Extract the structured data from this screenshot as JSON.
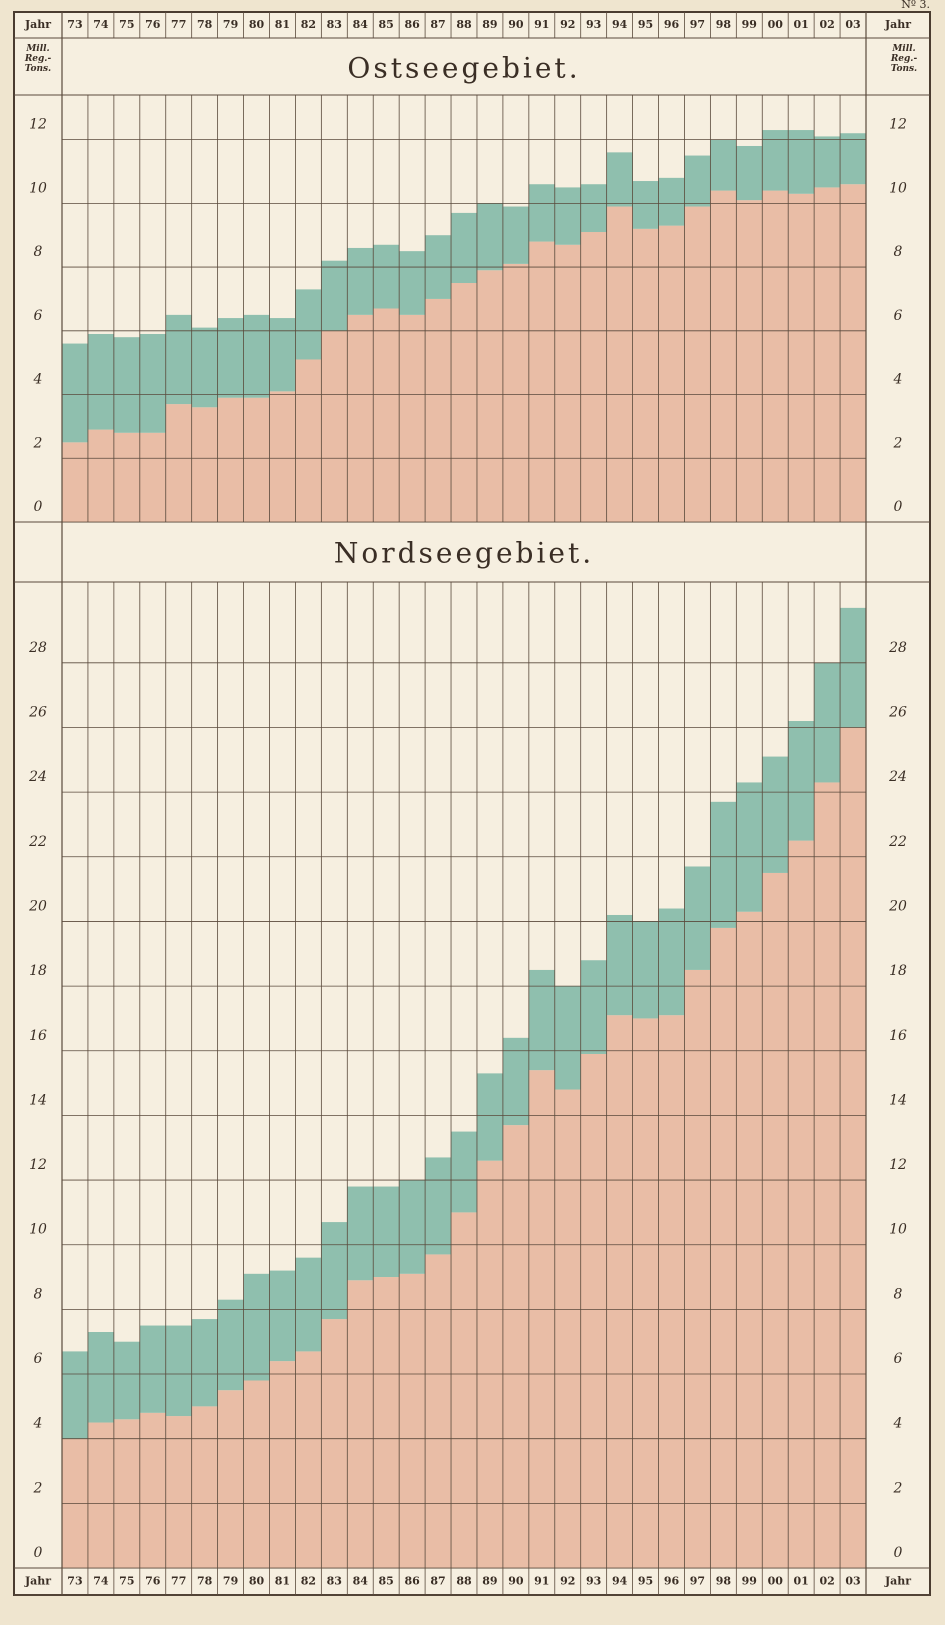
{
  "plate": "Nº 3.",
  "year_label": "Jahr",
  "chart_data": [
    {
      "type": "stacked-bar",
      "title": "Ostseegebiet.",
      "y_label": "Mill. Reg.-Tons.",
      "categories": [
        "73",
        "74",
        "75",
        "76",
        "77",
        "78",
        "79",
        "80",
        "81",
        "82",
        "83",
        "84",
        "85",
        "86",
        "87",
        "88",
        "89",
        "90",
        "91",
        "92",
        "93",
        "94",
        "95",
        "96",
        "97",
        "98",
        "99",
        "00",
        "01",
        "02",
        "03"
      ],
      "series": [
        {
          "color": "#e9bda6",
          "values": [
            2.5,
            2.9,
            2.8,
            2.8,
            3.7,
            3.6,
            3.9,
            3.9,
            4.1,
            5.1,
            6.0,
            6.5,
            6.7,
            6.5,
            7.0,
            7.5,
            7.9,
            8.1,
            8.8,
            8.7,
            9.1,
            9.9,
            9.2,
            9.3,
            9.9,
            10.4,
            10.1,
            10.4,
            10.3,
            10.5,
            10.6
          ]
        },
        {
          "color": "#8fbfae",
          "values": [
            3.1,
            3.0,
            3.0,
            3.1,
            2.8,
            2.5,
            2.5,
            2.6,
            2.3,
            2.2,
            2.2,
            2.1,
            2.0,
            2.0,
            2.0,
            2.2,
            2.1,
            1.8,
            1.8,
            1.8,
            1.5,
            1.7,
            1.5,
            1.5,
            1.6,
            1.6,
            1.7,
            1.9,
            2.0,
            1.6,
            1.6
          ]
        }
      ],
      "ylim": [
        0,
        13.4
      ],
      "yticks": [
        0,
        2,
        4,
        6,
        8,
        10,
        12
      ],
      "grid": true
    },
    {
      "type": "stacked-bar",
      "title": "Nordseegebiet.",
      "categories": [
        "73",
        "74",
        "75",
        "76",
        "77",
        "78",
        "79",
        "80",
        "81",
        "82",
        "83",
        "84",
        "85",
        "86",
        "87",
        "88",
        "89",
        "90",
        "91",
        "92",
        "93",
        "94",
        "95",
        "96",
        "97",
        "98",
        "99",
        "00",
        "01",
        "02",
        "03"
      ],
      "series": [
        {
          "color": "#e9bda6",
          "values": [
            4.0,
            4.5,
            4.6,
            4.8,
            4.7,
            5.0,
            5.5,
            5.8,
            6.4,
            6.7,
            7.7,
            8.9,
            9.0,
            9.1,
            9.7,
            11.0,
            12.6,
            13.7,
            15.4,
            14.8,
            15.9,
            17.1,
            17.0,
            17.1,
            18.5,
            19.8,
            20.3,
            21.5,
            22.5,
            24.3,
            26.0
          ]
        },
        {
          "color": "#8fbfae",
          "values": [
            2.7,
            2.8,
            2.4,
            2.7,
            2.8,
            2.7,
            2.8,
            3.3,
            2.8,
            2.9,
            3.0,
            2.9,
            2.8,
            2.9,
            3.0,
            2.5,
            2.7,
            2.7,
            3.1,
            3.2,
            2.9,
            3.1,
            3.0,
            3.3,
            3.2,
            3.9,
            4.0,
            3.6,
            3.7,
            3.7,
            3.7
          ]
        }
      ],
      "ylim": [
        0,
        30.5
      ],
      "yticks": [
        0,
        2,
        4,
        6,
        8,
        10,
        12,
        14,
        16,
        18,
        20,
        22,
        24,
        26,
        28
      ],
      "grid": true
    }
  ]
}
